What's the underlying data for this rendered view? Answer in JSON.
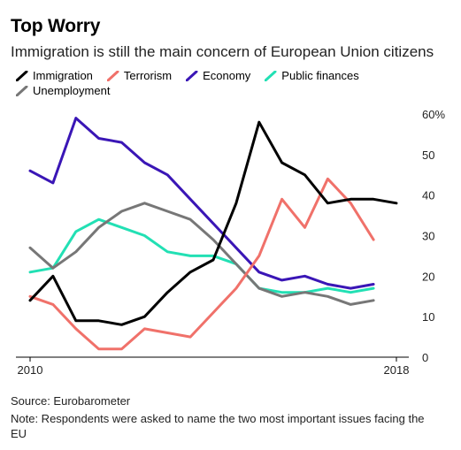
{
  "title": "Top Worry",
  "subtitle": "Immigration is still the main concern of European Union citizens",
  "source": "Source: Eurobarometer",
  "note": "Note: Respondents were asked to name the two most important issues facing the EU",
  "chart_data": {
    "type": "line",
    "x": [
      2010,
      2010.5,
      2011,
      2011.5,
      2012,
      2012.5,
      2013,
      2013.5,
      2014,
      2014.5,
      2015,
      2015.5,
      2016,
      2016.5,
      2017,
      2017.5,
      2018
    ],
    "series": [
      {
        "name": "Immigration",
        "color": "#000000",
        "values": [
          14,
          20,
          9,
          9,
          8,
          10,
          16,
          21,
          24,
          38,
          58,
          48,
          45,
          38,
          39,
          39,
          38
        ]
      },
      {
        "name": "Terrorism",
        "color": "#f0716a",
        "values": [
          15,
          13,
          7,
          2,
          2,
          7,
          6,
          5,
          11,
          17,
          25,
          39,
          32,
          44,
          38,
          29,
          null
        ]
      },
      {
        "name": "Economy",
        "color": "#3a16b6",
        "values": [
          46,
          43,
          59,
          54,
          53,
          48,
          45,
          39,
          33,
          27,
          21,
          19,
          20,
          18,
          17,
          18,
          null
        ]
      },
      {
        "name": "Public finances",
        "color": "#22e0b4",
        "values": [
          21,
          22,
          31,
          34,
          32,
          30,
          26,
          25,
          25,
          23,
          17,
          16,
          16,
          17,
          16,
          17,
          null
        ]
      },
      {
        "name": "Unemployment",
        "color": "#777777",
        "values": [
          27,
          22,
          26,
          32,
          36,
          38,
          36,
          34,
          29,
          23,
          17,
          15,
          16,
          15,
          13,
          14,
          null
        ]
      }
    ],
    "x_tick_labels": [
      "2010",
      "2018"
    ],
    "y_ticks": [
      0,
      10,
      20,
      30,
      40,
      50,
      60
    ],
    "y_tick_labels": [
      "0",
      "10",
      "20",
      "30",
      "40",
      "50",
      "60%"
    ],
    "ylim": [
      0,
      60
    ],
    "xlim": [
      2010,
      2018
    ],
    "grid": false,
    "y_axis_side": "right",
    "legend_position": "top"
  }
}
